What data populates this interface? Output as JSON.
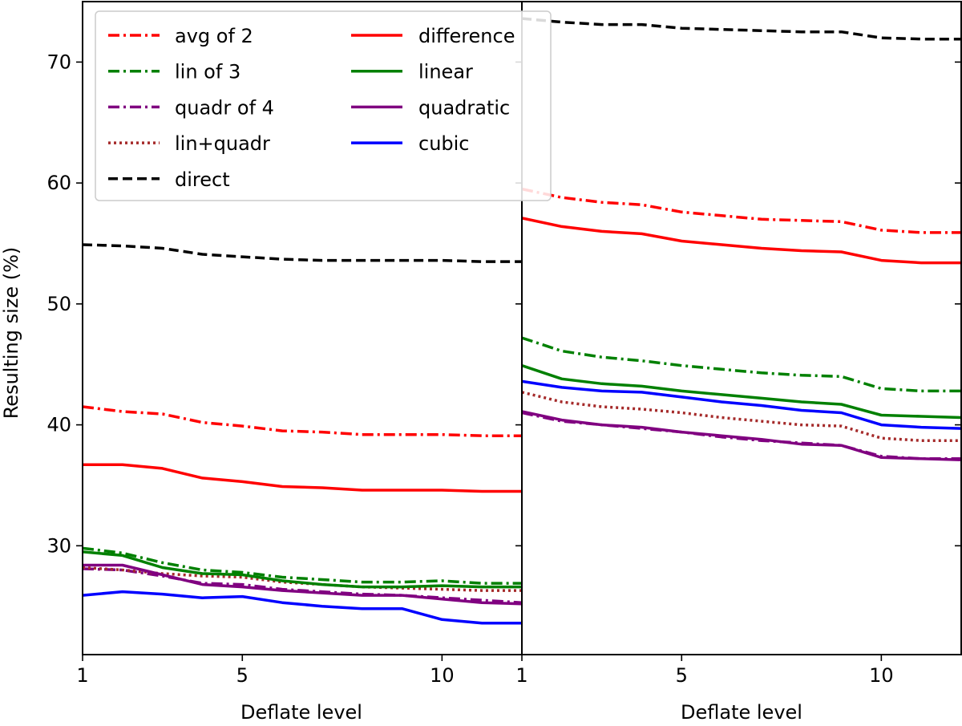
{
  "chart_data": [
    {
      "type": "line",
      "panel": "left",
      "title": "",
      "xlabel": "Deflate level",
      "ylabel": "Resulting size (%)",
      "xlim": [
        1,
        12
      ],
      "ylim": [
        21,
        75
      ],
      "xticks": [
        1,
        5,
        10
      ],
      "xtick_labels": [
        "1",
        "5",
        "10"
      ],
      "yticks": [
        30,
        40,
        50,
        60,
        70
      ],
      "ytick_labels": [
        "30",
        "40",
        "50",
        "60",
        "70"
      ],
      "x": [
        1,
        2,
        3,
        4,
        5,
        6,
        7,
        8,
        9,
        10,
        11,
        12
      ],
      "series": [
        {
          "name": "avg of 2",
          "color": "#ff0000",
          "style": "dashdot",
          "values": [
            41.5,
            41.1,
            40.9,
            40.2,
            39.9,
            39.5,
            39.4,
            39.2,
            39.2,
            39.2,
            39.1,
            39.1
          ]
        },
        {
          "name": "lin of 3",
          "color": "#008000",
          "style": "dashdot",
          "values": [
            29.8,
            29.4,
            28.6,
            28.0,
            27.8,
            27.4,
            27.2,
            27.0,
            27.0,
            27.1,
            26.9,
            26.9
          ]
        },
        {
          "name": "quadr of 4",
          "color": "#800080",
          "style": "dashdot",
          "values": [
            28.1,
            28.0,
            27.5,
            26.9,
            26.8,
            26.4,
            26.2,
            26.0,
            25.9,
            25.7,
            25.5,
            25.3
          ]
        },
        {
          "name": "lin+quadr",
          "color": "#a52a2a",
          "style": "dotted",
          "values": [
            28.2,
            28.0,
            27.7,
            27.5,
            27.4,
            27.0,
            26.8,
            26.6,
            26.5,
            26.4,
            26.3,
            26.3
          ]
        },
        {
          "name": "direct",
          "color": "#000000",
          "style": "dashed",
          "values": [
            54.9,
            54.8,
            54.6,
            54.1,
            53.9,
            53.7,
            53.6,
            53.6,
            53.6,
            53.6,
            53.5,
            53.5
          ]
        },
        {
          "name": "difference",
          "color": "#ff0000",
          "style": "solid",
          "values": [
            36.7,
            36.7,
            36.4,
            35.6,
            35.3,
            34.9,
            34.8,
            34.6,
            34.6,
            34.6,
            34.5,
            34.5
          ]
        },
        {
          "name": "linear",
          "color": "#008000",
          "style": "solid",
          "values": [
            29.5,
            29.2,
            28.2,
            27.7,
            27.6,
            27.1,
            26.8,
            26.6,
            26.6,
            26.7,
            26.6,
            26.6
          ]
        },
        {
          "name": "quadratic",
          "color": "#800080",
          "style": "solid",
          "values": [
            28.4,
            28.4,
            27.6,
            26.8,
            26.6,
            26.3,
            26.1,
            25.9,
            25.9,
            25.6,
            25.3,
            25.2
          ]
        },
        {
          "name": "cubic",
          "color": "#0000ff",
          "style": "solid",
          "values": [
            25.9,
            26.2,
            26.0,
            25.7,
            25.8,
            25.3,
            25.0,
            24.8,
            24.8,
            23.9,
            23.6,
            23.6
          ]
        }
      ]
    },
    {
      "type": "line",
      "panel": "right",
      "title": "",
      "xlabel": "Deflate level",
      "ylabel": "",
      "xlim": [
        1,
        12
      ],
      "ylim": [
        21,
        75
      ],
      "xticks": [
        1,
        5,
        10
      ],
      "xtick_labels": [
        "1",
        "5",
        "10"
      ],
      "x": [
        1,
        2,
        3,
        4,
        5,
        6,
        7,
        8,
        9,
        10,
        11,
        12
      ],
      "series": [
        {
          "name": "avg of 2",
          "color": "#ff0000",
          "style": "dashdot",
          "values": [
            59.5,
            58.8,
            58.4,
            58.2,
            57.6,
            57.3,
            57.0,
            56.9,
            56.8,
            56.1,
            55.9,
            55.9
          ]
        },
        {
          "name": "lin of 3",
          "color": "#008000",
          "style": "dashdot",
          "values": [
            47.2,
            46.1,
            45.6,
            45.3,
            44.9,
            44.6,
            44.3,
            44.1,
            44.0,
            43.0,
            42.8,
            42.8
          ]
        },
        {
          "name": "quadr of 4",
          "color": "#800080",
          "style": "dashdot",
          "values": [
            41.0,
            40.3,
            40.0,
            39.7,
            39.4,
            39.0,
            38.7,
            38.5,
            38.3,
            37.4,
            37.2,
            37.2
          ]
        },
        {
          "name": "lin+quadr",
          "color": "#a52a2a",
          "style": "dotted",
          "values": [
            42.7,
            41.9,
            41.5,
            41.3,
            41.0,
            40.6,
            40.3,
            40.0,
            39.9,
            38.9,
            38.7,
            38.7
          ]
        },
        {
          "name": "direct",
          "color": "#000000",
          "style": "dashed",
          "values": [
            73.6,
            73.3,
            73.1,
            73.1,
            72.8,
            72.7,
            72.6,
            72.5,
            72.5,
            72.0,
            71.9,
            71.9
          ]
        },
        {
          "name": "difference",
          "color": "#ff0000",
          "style": "solid",
          "values": [
            57.1,
            56.4,
            56.0,
            55.8,
            55.2,
            54.9,
            54.6,
            54.4,
            54.3,
            53.6,
            53.4,
            53.4
          ]
        },
        {
          "name": "linear",
          "color": "#008000",
          "style": "solid",
          "values": [
            44.9,
            43.8,
            43.4,
            43.2,
            42.8,
            42.5,
            42.2,
            41.9,
            41.7,
            40.8,
            40.7,
            40.6
          ]
        },
        {
          "name": "quadratic",
          "color": "#800080",
          "style": "solid",
          "values": [
            41.1,
            40.4,
            40.0,
            39.8,
            39.4,
            39.1,
            38.8,
            38.4,
            38.3,
            37.3,
            37.2,
            37.1
          ]
        },
        {
          "name": "cubic",
          "color": "#0000ff",
          "style": "solid",
          "values": [
            43.6,
            43.1,
            42.8,
            42.7,
            42.3,
            41.9,
            41.6,
            41.2,
            41.0,
            40.0,
            39.8,
            39.7
          ]
        }
      ]
    }
  ],
  "legend": {
    "location": "upper-left",
    "columns": 2,
    "entries": [
      "avg of 2",
      "lin of 3",
      "quadr of 4",
      "lin+quadr",
      "direct",
      "difference",
      "linear",
      "quadratic",
      "cubic"
    ]
  }
}
